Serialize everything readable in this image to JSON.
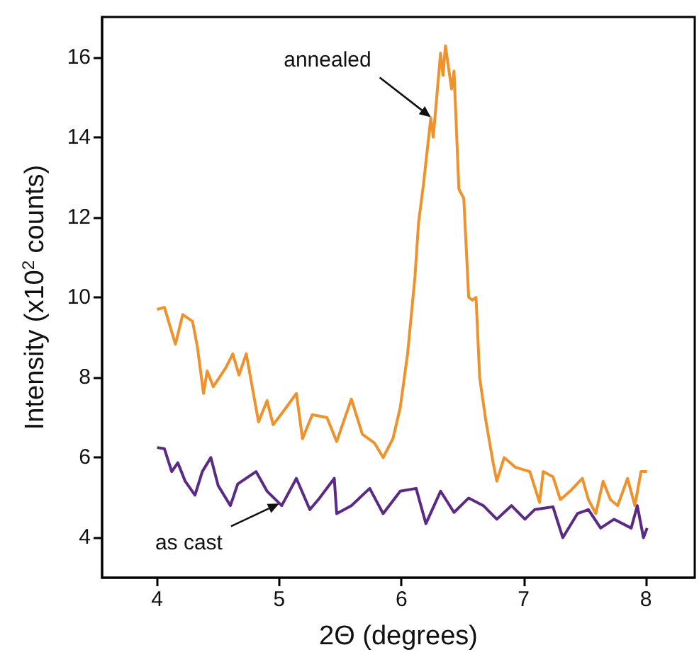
{
  "chart_data": {
    "type": "line",
    "xlabel": "2Θ (degrees)",
    "ylabel": "Intensity (x10$^{2}$ counts)",
    "xlim": [
      3.55,
      8.4
    ],
    "xticks": [
      4,
      5,
      6,
      7,
      8
    ],
    "ylim": [
      3,
      17
    ],
    "yticks": [
      4,
      6,
      8,
      10,
      12,
      14,
      16
    ],
    "grid": false,
    "marker": "none",
    "line_style": "solid",
    "annotations": [
      {
        "text": "annealed",
        "x": 6.24,
        "y": 14.5
      },
      {
        "text": "as cast",
        "x": 5.0,
        "y": 4.85
      }
    ],
    "series": [
      {
        "color": "#f0922b",
        "x": [
          4.0,
          4.06,
          4.15,
          4.21,
          4.29,
          4.33,
          4.38,
          4.41,
          4.46,
          4.56,
          4.62,
          4.67,
          4.73,
          4.83,
          4.9,
          4.95,
          5.04,
          5.14,
          5.19,
          5.27,
          5.39,
          5.47,
          5.59,
          5.68,
          5.78,
          5.85,
          5.93,
          5.99,
          6.05,
          6.11,
          6.14,
          6.18,
          6.24,
          6.26,
          6.28,
          6.32,
          6.34,
          6.36,
          6.41,
          6.43,
          6.47,
          6.51,
          6.55,
          6.58,
          6.61,
          6.64,
          6.69,
          6.75,
          6.78,
          6.84,
          6.93,
          7.05,
          7.13,
          7.16,
          7.24,
          7.3,
          7.38,
          7.48,
          7.53,
          7.59,
          7.65,
          7.71,
          7.77,
          7.85,
          7.91,
          7.96,
          8.01
        ],
        "values": [
          9.7,
          9.75,
          8.83,
          9.57,
          9.4,
          8.76,
          7.6,
          8.16,
          7.77,
          8.23,
          8.59,
          8.06,
          8.59,
          6.89,
          7.42,
          6.82,
          7.18,
          7.6,
          6.47,
          7.07,
          7.0,
          6.4,
          7.46,
          6.58,
          6.36,
          6.0,
          6.47,
          7.25,
          8.59,
          10.5,
          11.87,
          12.82,
          14.48,
          14.0,
          14.7,
          16.1,
          15.54,
          16.28,
          15.2,
          15.65,
          12.7,
          12.47,
          10.0,
          9.93,
          10.0,
          7.99,
          6.93,
          5.87,
          5.41,
          6.0,
          5.76,
          5.65,
          4.88,
          5.65,
          5.52,
          4.95,
          5.16,
          5.48,
          4.95,
          4.6,
          5.41,
          4.95,
          4.8,
          5.48,
          4.8,
          5.65,
          5.65
        ]
      },
      {
        "color": "#5b2a86",
        "x": [
          4.0,
          4.06,
          4.12,
          4.17,
          4.23,
          4.31,
          4.37,
          4.44,
          4.5,
          4.6,
          4.66,
          4.81,
          4.9,
          5.02,
          5.14,
          5.25,
          5.33,
          5.45,
          5.47,
          5.59,
          5.74,
          5.85,
          5.99,
          6.12,
          6.2,
          6.32,
          6.43,
          6.55,
          6.67,
          6.78,
          6.9,
          7.01,
          7.09,
          7.24,
          7.32,
          7.44,
          7.53,
          7.63,
          7.74,
          7.88,
          7.93,
          7.98,
          8.01
        ],
        "values": [
          6.25,
          6.22,
          5.65,
          5.87,
          5.41,
          5.06,
          5.65,
          6.0,
          5.3,
          4.8,
          5.34,
          5.65,
          5.16,
          4.8,
          5.48,
          4.7,
          4.99,
          5.48,
          4.6,
          4.8,
          5.23,
          4.6,
          5.16,
          5.23,
          4.35,
          5.16,
          4.63,
          4.99,
          4.8,
          4.46,
          4.8,
          4.46,
          4.7,
          4.77,
          4.0,
          4.6,
          4.7,
          4.24,
          4.46,
          4.24,
          4.8,
          4.0,
          4.24
        ]
      }
    ]
  }
}
